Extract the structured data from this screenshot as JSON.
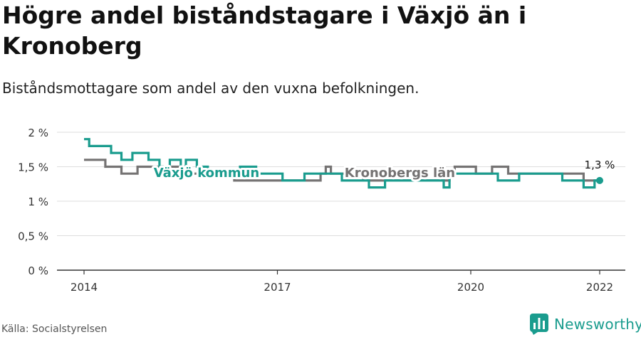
{
  "header": {
    "title": "Högre andel biståndstagare i Växjö än i Kronoberg",
    "subtitle": "Biståndsmottagare som andel av den vuxna befolkningen."
  },
  "footer": {
    "source": "Källa: Socialstyrelsen",
    "brand": "Newsworthy"
  },
  "colors": {
    "vaxjo": "#1a9c8e",
    "kronoberg": "#757373",
    "grid": "#dddddd",
    "axis": "#333333"
  },
  "chart_data": {
    "type": "line",
    "title": "Högre andel biståndstagare i Växjö än i Kronoberg",
    "subtitle": "Biståndsmottagare som andel av den vuxna befolkningen.",
    "xlabel": "",
    "ylabel": "",
    "x_ticks": [
      2014,
      2017,
      2020,
      2022
    ],
    "x_tick_labels": [
      "2014",
      "2017",
      "2020",
      "2022"
    ],
    "y_ticks": [
      0,
      0.5,
      1,
      1.5,
      2
    ],
    "y_tick_labels": [
      "0 %",
      "0,5 %",
      "1 %",
      "1,5 %",
      "2 %"
    ],
    "xlim": [
      2014,
      2022
    ],
    "ylim": [
      0,
      2
    ],
    "grid": true,
    "end_label": "1,3 %",
    "series": [
      {
        "name": "Växjö kommun",
        "label_at_x": 2015.9,
        "x": [
          2014.0,
          2014.08,
          2014.17,
          2014.25,
          2014.33,
          2014.42,
          2014.5,
          2014.58,
          2014.67,
          2014.75,
          2014.83,
          2014.92,
          2015.0,
          2015.08,
          2015.17,
          2015.25,
          2015.33,
          2015.42,
          2015.5,
          2015.58,
          2015.67,
          2015.75,
          2015.83,
          2015.92,
          2016.0,
          2016.08,
          2016.17,
          2016.25,
          2016.33,
          2016.42,
          2016.5,
          2016.58,
          2016.67,
          2016.75,
          2016.83,
          2016.92,
          2017.0,
          2017.08,
          2017.17,
          2017.25,
          2017.33,
          2017.42,
          2017.5,
          2017.58,
          2017.67,
          2017.75,
          2017.83,
          2017.92,
          2018.0,
          2018.08,
          2018.17,
          2018.25,
          2018.33,
          2018.42,
          2018.5,
          2018.58,
          2018.67,
          2018.75,
          2018.83,
          2018.92,
          2019.0,
          2019.08,
          2019.17,
          2019.25,
          2019.33,
          2019.42,
          2019.5,
          2019.58,
          2019.67,
          2019.75,
          2019.83,
          2019.92,
          2020.0,
          2020.08,
          2020.17,
          2020.25,
          2020.33,
          2020.42,
          2020.5,
          2020.58,
          2020.67,
          2020.75,
          2020.83,
          2020.92,
          2021.0,
          2021.08,
          2021.17,
          2021.25,
          2021.33,
          2021.42,
          2021.5,
          2021.58,
          2021.67,
          2021.75,
          2021.83,
          2021.92,
          2022.0
        ],
        "values": [
          1.9,
          1.8,
          1.8,
          1.8,
          1.8,
          1.7,
          1.7,
          1.6,
          1.6,
          1.7,
          1.7,
          1.7,
          1.6,
          1.6,
          1.5,
          1.5,
          1.6,
          1.6,
          1.5,
          1.6,
          1.6,
          1.5,
          1.5,
          1.4,
          1.4,
          1.4,
          1.4,
          1.4,
          1.4,
          1.5,
          1.5,
          1.5,
          1.4,
          1.4,
          1.4,
          1.4,
          1.4,
          1.3,
          1.3,
          1.3,
          1.3,
          1.4,
          1.4,
          1.4,
          1.4,
          1.4,
          1.4,
          1.4,
          1.3,
          1.3,
          1.3,
          1.3,
          1.3,
          1.2,
          1.2,
          1.2,
          1.3,
          1.3,
          1.3,
          1.3,
          1.3,
          1.3,
          1.3,
          1.3,
          1.3,
          1.3,
          1.3,
          1.2,
          1.4,
          1.4,
          1.4,
          1.4,
          1.4,
          1.4,
          1.4,
          1.4,
          1.4,
          1.3,
          1.3,
          1.3,
          1.3,
          1.4,
          1.4,
          1.4,
          1.4,
          1.4,
          1.4,
          1.4,
          1.4,
          1.3,
          1.3,
          1.3,
          1.3,
          1.2,
          1.2,
          1.3,
          1.3
        ]
      },
      {
        "name": "Kronobergs län",
        "label_at_x": 2018.9,
        "x": [
          2014.0,
          2014.08,
          2014.17,
          2014.25,
          2014.33,
          2014.42,
          2014.5,
          2014.58,
          2014.67,
          2014.75,
          2014.83,
          2014.92,
          2015.0,
          2015.08,
          2015.17,
          2015.25,
          2015.33,
          2015.42,
          2015.5,
          2015.58,
          2015.67,
          2015.75,
          2015.83,
          2015.92,
          2016.0,
          2016.08,
          2016.17,
          2016.25,
          2016.33,
          2016.42,
          2016.5,
          2016.58,
          2016.67,
          2016.75,
          2016.83,
          2016.92,
          2017.0,
          2017.08,
          2017.17,
          2017.25,
          2017.33,
          2017.42,
          2017.5,
          2017.58,
          2017.67,
          2017.75,
          2017.83,
          2017.92,
          2018.0,
          2018.08,
          2018.17,
          2018.25,
          2018.33,
          2018.42,
          2018.5,
          2018.58,
          2018.67,
          2018.75,
          2018.83,
          2018.92,
          2019.0,
          2019.08,
          2019.17,
          2019.25,
          2019.33,
          2019.42,
          2019.5,
          2019.58,
          2019.67,
          2019.75,
          2019.83,
          2019.92,
          2020.0,
          2020.08,
          2020.17,
          2020.25,
          2020.33,
          2020.42,
          2020.5,
          2020.58,
          2020.67,
          2020.75,
          2020.83,
          2020.92,
          2021.0,
          2021.08,
          2021.17,
          2021.25,
          2021.33,
          2021.42,
          2021.5,
          2021.58,
          2021.67,
          2021.75,
          2021.83,
          2021.92,
          2022.0
        ],
        "values": [
          1.6,
          1.6,
          1.6,
          1.6,
          1.5,
          1.5,
          1.5,
          1.4,
          1.4,
          1.4,
          1.5,
          1.5,
          1.5,
          1.5,
          1.5,
          1.5,
          1.5,
          1.5,
          1.5,
          1.4,
          1.4,
          1.4,
          1.4,
          1.4,
          1.4,
          1.4,
          1.4,
          1.4,
          1.3,
          1.3,
          1.3,
          1.3,
          1.3,
          1.3,
          1.3,
          1.3,
          1.3,
          1.3,
          1.3,
          1.3,
          1.3,
          1.3,
          1.3,
          1.3,
          1.4,
          1.5,
          1.4,
          1.4,
          1.4,
          1.4,
          1.4,
          1.4,
          1.3,
          1.3,
          1.3,
          1.3,
          1.3,
          1.3,
          1.3,
          1.3,
          1.3,
          1.3,
          1.3,
          1.3,
          1.3,
          1.3,
          1.3,
          1.3,
          1.4,
          1.5,
          1.5,
          1.5,
          1.5,
          1.4,
          1.4,
          1.4,
          1.5,
          1.5,
          1.5,
          1.4,
          1.4,
          1.4,
          1.4,
          1.4,
          1.4,
          1.4,
          1.4,
          1.4,
          1.4,
          1.4,
          1.4,
          1.4,
          1.4,
          1.3,
          1.3,
          1.3,
          1.3
        ]
      }
    ]
  }
}
